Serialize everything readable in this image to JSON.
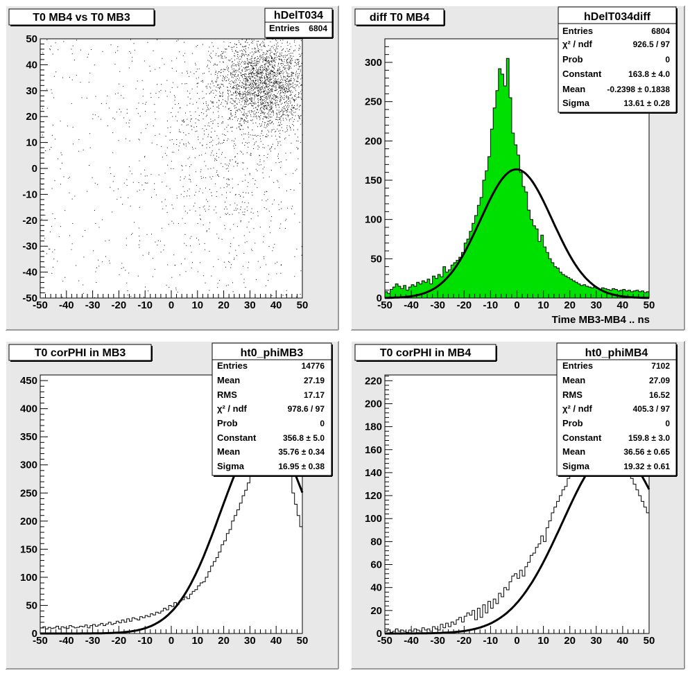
{
  "chart_data": [
    {
      "type": "scatter",
      "title": "T0 MB4 vs T0 MB3",
      "stats_name": "hDelT034",
      "stats": [
        {
          "label": "Entries",
          "value": "6804"
        }
      ],
      "xlim": [
        -50,
        50
      ],
      "ylim": [
        -50,
        50
      ],
      "x_ticks": [
        "-50",
        "-40",
        "-30",
        "-20",
        "-10",
        "0",
        "10",
        "20",
        "30",
        "40",
        "50"
      ],
      "y_ticks": [
        "-50",
        "-40",
        "-30",
        "-20",
        "-10",
        "0",
        "10",
        "20",
        "30",
        "40",
        "50"
      ],
      "entries": 6804,
      "density_center": [
        35,
        33
      ],
      "density_sigma": [
        9,
        9
      ]
    },
    {
      "type": "bar",
      "title": "diff T0 MB4",
      "stats_name": "hDelT034diff",
      "xlabel": "Time MB3-MB4  ..  ns",
      "stats": [
        {
          "label": "Entries",
          "value": "6804"
        },
        {
          "label": "χ² / ndf",
          "value": "926.5 / 97"
        },
        {
          "label": "Prob",
          "value": "0"
        },
        {
          "label": "Constant",
          "value": "163.8 ± 4.0"
        },
        {
          "label": "Mean",
          "value": "-0.2398 ± 0.1838"
        },
        {
          "label": "Sigma",
          "value": "13.61 ± 0.28"
        }
      ],
      "xlim": [
        -50,
        50
      ],
      "ylim": [
        0,
        330
      ],
      "x_ticks": [
        "-50",
        "-40",
        "-30",
        "-20",
        "-10",
        "0",
        "10",
        "20",
        "30",
        "40",
        "50"
      ],
      "y_ticks": [
        {
          "v": 0,
          "t": "0"
        },
        {
          "v": 50,
          "t": "50"
        },
        {
          "v": 100,
          "t": "100"
        },
        {
          "v": 150,
          "t": "150"
        },
        {
          "v": 200,
          "t": "200"
        },
        {
          "v": 250,
          "t": "250"
        },
        {
          "v": 300,
          "t": "300"
        }
      ],
      "bin_start": -50,
      "bin_width": 1,
      "values": [
        8,
        6,
        11,
        14,
        18,
        15,
        12,
        16,
        10,
        14,
        17,
        15,
        20,
        18,
        22,
        20,
        24,
        18,
        28,
        25,
        30,
        27,
        40,
        33,
        36,
        42,
        45,
        48,
        52,
        58,
        70,
        75,
        85,
        95,
        105,
        118,
        128,
        150,
        162,
        180,
        215,
        242,
        264,
        292,
        285,
        270,
        305,
        255,
        210,
        195,
        182,
        160,
        142,
        135,
        112,
        100,
        92,
        88,
        72,
        80,
        65,
        58,
        50,
        45,
        40,
        38,
        33,
        30,
        28,
        26,
        24,
        22,
        20,
        18,
        16,
        17,
        15,
        14,
        13,
        14,
        12,
        11,
        13,
        12,
        11,
        10,
        12,
        11,
        9,
        10,
        11,
        9,
        10,
        8,
        9,
        10,
        8,
        9,
        7,
        8
      ],
      "fit": {
        "constant": 163.8,
        "mean": -0.2398,
        "sigma": 13.61
      }
    },
    {
      "type": "bar",
      "title": "T0 corPHI in MB3",
      "stats_name": "ht0_phiMB3",
      "stats": [
        {
          "label": "Entries",
          "value": "14776"
        },
        {
          "label": "Mean",
          "value": "27.19"
        },
        {
          "label": "RMS",
          "value": "17.17"
        },
        {
          "label": "χ² / ndf",
          "value": "978.6 / 97"
        },
        {
          "label": "Prob",
          "value": "0"
        },
        {
          "label": "Constant",
          "value": "356.8 ± 5.0"
        },
        {
          "label": "Mean",
          "value": "35.76 ± 0.34"
        },
        {
          "label": "Sigma",
          "value": "16.95 ± 0.38"
        }
      ],
      "xlim": [
        -50,
        50
      ],
      "ylim": [
        0,
        460
      ],
      "x_ticks": [
        "-50",
        "-40",
        "-30",
        "-20",
        "-10",
        "0",
        "10",
        "20",
        "30",
        "40",
        "50"
      ],
      "y_ticks": [
        {
          "v": 0,
          "t": "0"
        },
        {
          "v": 50,
          "t": "50"
        },
        {
          "v": 100,
          "t": "100"
        },
        {
          "v": 150,
          "t": "150"
        },
        {
          "v": 200,
          "t": "200"
        },
        {
          "v": 250,
          "t": "250"
        },
        {
          "v": 300,
          "t": "300"
        },
        {
          "v": 350,
          "t": "350"
        },
        {
          "v": 400,
          "t": "400"
        },
        {
          "v": 450,
          "t": "450"
        }
      ],
      "bin_start": -50,
      "bin_width": 1,
      "values": [
        10,
        12,
        8,
        11,
        9,
        10,
        13,
        8,
        12,
        10,
        9,
        14,
        12,
        10,
        11,
        13,
        12,
        15,
        10,
        14,
        16,
        13,
        15,
        18,
        14,
        17,
        20,
        16,
        18,
        22,
        19,
        24,
        20,
        26,
        22,
        28,
        26,
        24,
        30,
        28,
        32,
        30,
        35,
        33,
        38,
        36,
        40,
        45,
        42,
        50,
        48,
        55,
        52,
        58,
        60,
        65,
        62,
        70,
        75,
        78,
        85,
        90,
        92,
        100,
        110,
        120,
        128,
        135,
        145,
        158,
        165,
        178,
        185,
        200,
        210,
        220,
        232,
        245,
        255,
        268,
        280,
        292,
        305,
        318,
        330,
        342,
        352,
        362,
        372,
        380,
        385,
        378,
        360,
        340,
        310,
        280,
        250,
        230,
        210,
        190
      ],
      "fit": {
        "constant": 356.8,
        "mean": 35.76,
        "sigma": 16.95
      }
    },
    {
      "type": "bar",
      "title": "T0 corPHI in MB4",
      "stats_name": "ht0_phiMB4",
      "stats": [
        {
          "label": "Entries",
          "value": "7102"
        },
        {
          "label": "Mean",
          "value": "27.09"
        },
        {
          "label": "RMS",
          "value": "16.52"
        },
        {
          "label": "χ² / ndf",
          "value": "405.3 / 97"
        },
        {
          "label": "Prob",
          "value": "0"
        },
        {
          "label": "Constant",
          "value": "159.8 ± 3.0"
        },
        {
          "label": "Mean",
          "value": "36.56 ± 0.65"
        },
        {
          "label": "Sigma",
          "value": "19.32 ± 0.61"
        }
      ],
      "xlim": [
        -50,
        50
      ],
      "ylim": [
        0,
        225
      ],
      "x_ticks": [
        "-50",
        "-40",
        "-30",
        "-20",
        "-10",
        "0",
        "10",
        "20",
        "30",
        "40",
        "50"
      ],
      "y_ticks": [
        {
          "v": 0,
          "t": "0"
        },
        {
          "v": 20,
          "t": "20"
        },
        {
          "v": 40,
          "t": "40"
        },
        {
          "v": 60,
          "t": "60"
        },
        {
          "v": 80,
          "t": "80"
        },
        {
          "v": 100,
          "t": "100"
        },
        {
          "v": 120,
          "t": "120"
        },
        {
          "v": 140,
          "t": "140"
        },
        {
          "v": 160,
          "t": "160"
        },
        {
          "v": 180,
          "t": "180"
        },
        {
          "v": 200,
          "t": "200"
        },
        {
          "v": 220,
          "t": "220"
        }
      ],
      "bin_start": -50,
      "bin_width": 1,
      "values": [
        2,
        3,
        1,
        2,
        4,
        2,
        3,
        2,
        1,
        3,
        2,
        4,
        3,
        2,
        5,
        3,
        4,
        2,
        6,
        4,
        3,
        8,
        5,
        9,
        6,
        10,
        8,
        12,
        14,
        10,
        15,
        18,
        16,
        20,
        12,
        22,
        14,
        25,
        18,
        28,
        22,
        30,
        26,
        35,
        32,
        40,
        38,
        45,
        50,
        52,
        48,
        55,
        50,
        58,
        62,
        68,
        70,
        75,
        78,
        85,
        80,
        92,
        98,
        105,
        110,
        115,
        120,
        125,
        128,
        135,
        140,
        145,
        150,
        155,
        158,
        162,
        165,
        168,
        172,
        175,
        178,
        180,
        182,
        185,
        180,
        178,
        175,
        170,
        165,
        160,
        155,
        150,
        140,
        135,
        130,
        125,
        120,
        115,
        110,
        105
      ],
      "fit": {
        "constant": 159.8,
        "mean": 36.56,
        "sigma": 19.32
      }
    }
  ]
}
